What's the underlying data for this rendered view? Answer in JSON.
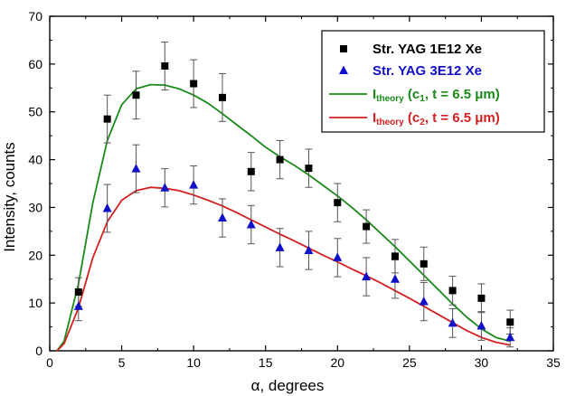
{
  "chart_data": {
    "type": "scatter",
    "xlabel": "α, degrees",
    "ylabel": "Intensity, counts",
    "xlim": [
      0,
      35
    ],
    "ylim": [
      0,
      70
    ],
    "xticks": [
      0,
      5,
      10,
      15,
      20,
      25,
      30,
      35
    ],
    "yticks": [
      0,
      10,
      20,
      30,
      40,
      50,
      60,
      70
    ],
    "grid": false,
    "legend_position": "top-right",
    "series": [
      {
        "name": "Str. YAG 1E12 Xe",
        "kind": "points",
        "marker": "square",
        "color": "#000000",
        "x": [
          2,
          4,
          6,
          8,
          10,
          12,
          14,
          16,
          18,
          20,
          22,
          24,
          26,
          28,
          30,
          32
        ],
        "y": [
          12.3,
          48.5,
          53.5,
          59.6,
          55.9,
          53.0,
          37.5,
          40.0,
          38.2,
          31.0,
          26.0,
          19.8,
          18.2,
          12.6,
          11.0,
          6.0
        ],
        "err": [
          3.0,
          5.0,
          5.0,
          5.0,
          5.0,
          5.0,
          4.0,
          4.0,
          4.0,
          4.0,
          3.5,
          3.5,
          3.5,
          3.0,
          3.0,
          2.5
        ]
      },
      {
        "name": "Str. YAG 3E12 Xe",
        "kind": "points",
        "marker": "triangle",
        "color": "#1010c8",
        "x": [
          2,
          4,
          6,
          8,
          10,
          12,
          14,
          16,
          18,
          20,
          22,
          24,
          26,
          28,
          30,
          32
        ],
        "y": [
          9.3,
          29.8,
          38.1,
          34.1,
          34.7,
          27.8,
          26.4,
          21.6,
          21.0,
          19.5,
          15.5,
          15.0,
          10.3,
          5.8,
          5.2,
          2.8
        ],
        "err": [
          3.0,
          5.0,
          5.0,
          4.0,
          4.0,
          4.0,
          4.0,
          4.0,
          4.0,
          4.0,
          4.0,
          4.0,
          4.0,
          3.0,
          3.0,
          2.0
        ]
      },
      {
        "name": "I",
        "name_subscript": "theory",
        "name_suffix": " (c",
        "name_index": "1",
        "name_tail": ", t = 6.5 μm)",
        "kind": "line",
        "color": "#1a8a1a",
        "x": [
          0.5,
          1,
          2,
          3,
          4,
          5,
          6,
          7,
          8,
          9,
          10,
          11,
          12,
          13,
          14,
          15,
          16,
          17,
          18,
          19,
          20,
          21,
          22,
          23,
          24,
          25,
          26,
          27,
          28,
          29,
          30,
          31,
          32
        ],
        "y": [
          0,
          2,
          14,
          31,
          44,
          51.5,
          54.8,
          55.7,
          55.6,
          54.8,
          53.5,
          51.8,
          49.6,
          47.3,
          45.0,
          42.6,
          40.6,
          38.8,
          36.8,
          34.6,
          32.4,
          30.0,
          27.4,
          24.6,
          21.8,
          18.8,
          15.8,
          12.8,
          9.8,
          7.0,
          4.6,
          2.8,
          2.0
        ]
      },
      {
        "name": "I",
        "name_subscript": "theory",
        "name_suffix": " (c",
        "name_index": "2",
        "name_tail": ", t = 6.5 μm)",
        "kind": "line",
        "color": "#d42020",
        "x": [
          0.5,
          1,
          2,
          3,
          4,
          5,
          6,
          7,
          8,
          9,
          10,
          11,
          12,
          13,
          14,
          15,
          16,
          17,
          18,
          19,
          20,
          21,
          22,
          23,
          24,
          25,
          26,
          27,
          28,
          29,
          30,
          31,
          32
        ],
        "y": [
          0,
          1.5,
          9,
          19.5,
          27,
          31.5,
          33.5,
          34.2,
          34.0,
          33.5,
          32.6,
          31.5,
          30.3,
          28.9,
          27.4,
          25.9,
          24.4,
          23.0,
          21.5,
          20.0,
          18.6,
          17.1,
          15.7,
          14.2,
          12.6,
          11.0,
          9.3,
          7.6,
          5.9,
          4.2,
          2.8,
          1.8,
          1.2
        ]
      }
    ]
  }
}
